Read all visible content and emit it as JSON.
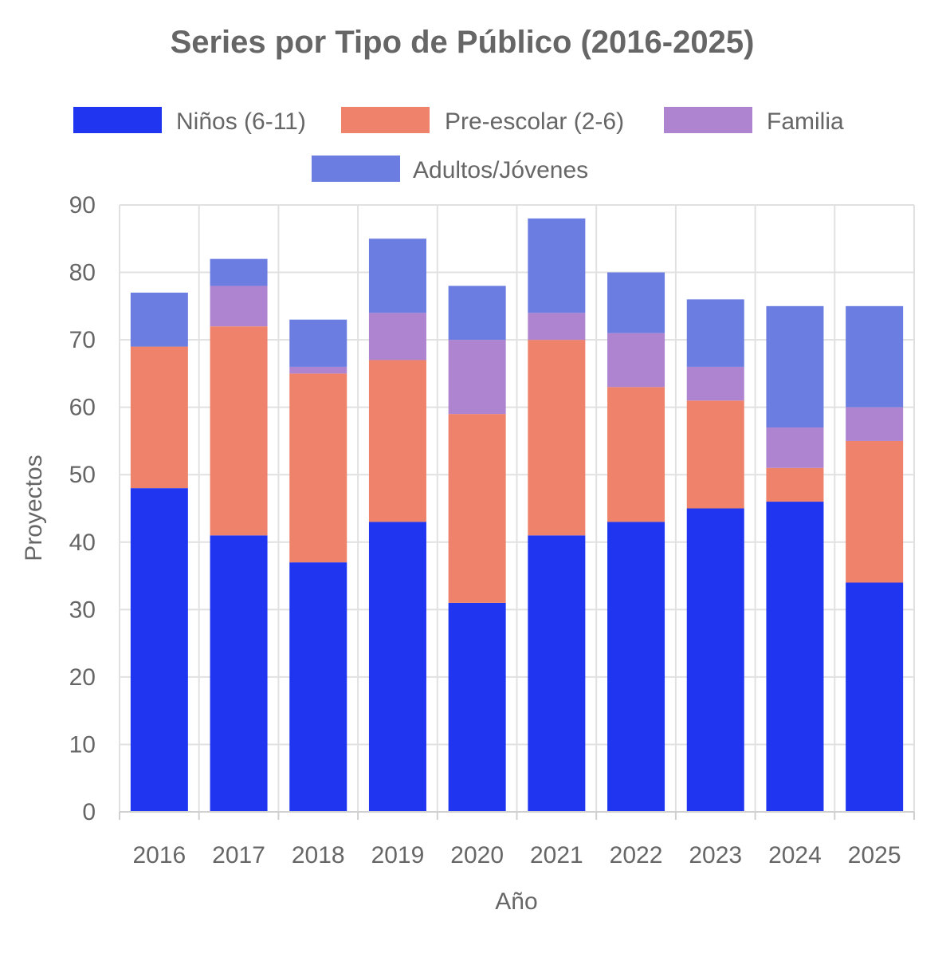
{
  "chart_data": {
    "type": "bar",
    "stacked": true,
    "title": "Series por Tipo de Público (2016-2025)",
    "xlabel": "Año",
    "ylabel": "Proyectos",
    "ylim": [
      0,
      90
    ],
    "yticks": [
      "0",
      "10",
      "20",
      "30",
      "40",
      "50",
      "60",
      "70",
      "80",
      "90"
    ],
    "grid": true,
    "legend_position": "top",
    "categories": [
      "2016",
      "2017",
      "2018",
      "2019",
      "2020",
      "2021",
      "2022",
      "2023",
      "2024",
      "2025"
    ],
    "series": [
      {
        "name": "Niños (6-11)",
        "color": "#1f35f0",
        "values": [
          48,
          41,
          37,
          43,
          31,
          41,
          43,
          45,
          46,
          34
        ]
      },
      {
        "name": "Pre-escolar (2-6)",
        "color": "#ee826a",
        "values": [
          21,
          31,
          28,
          24,
          28,
          29,
          20,
          16,
          5,
          21
        ]
      },
      {
        "name": "Familia",
        "color": "#ae84d0",
        "values": [
          0,
          6,
          1,
          7,
          11,
          4,
          8,
          5,
          6,
          5
        ]
      },
      {
        "name": "Adultos/Jóvenes",
        "color": "#6b7de0",
        "values": [
          8,
          4,
          7,
          11,
          8,
          14,
          9,
          10,
          18,
          15
        ]
      }
    ]
  }
}
